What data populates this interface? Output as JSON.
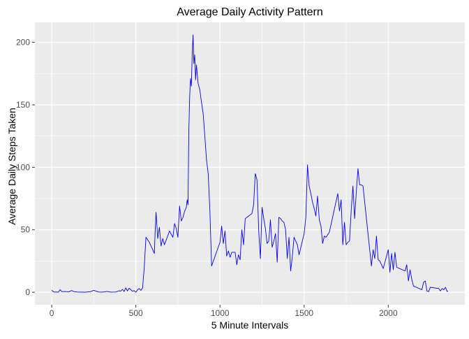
{
  "chart_data": {
    "type": "line",
    "title": "Average Daily Activity Pattern",
    "xlabel": "5 Minute Intervals",
    "ylabel": "Average Daily Steps Taken",
    "xlim": [
      -100,
      2455
    ],
    "ylim": [
      -10,
      216
    ],
    "x_ticks": [
      0,
      500,
      1000,
      1500,
      2000
    ],
    "x_tick_labels": [
      "0",
      "500",
      "1000",
      "1500",
      "2000"
    ],
    "y_ticks": [
      0,
      50,
      100,
      150,
      200
    ],
    "y_tick_labels": [
      "0",
      "50",
      "100",
      "150",
      "200"
    ],
    "grid": true,
    "panel_background": "#ebebeb",
    "grid_color": "#ffffff",
    "series": [
      {
        "color": "#0000ff",
        "x": [
          0,
          10,
          20,
          30,
          40,
          50,
          60,
          80,
          100,
          120,
          130,
          150,
          200,
          230,
          250,
          280,
          300,
          330,
          350,
          380,
          400,
          410,
          420,
          430,
          440,
          450,
          460,
          470,
          480,
          490,
          500,
          510,
          520,
          530,
          540,
          550,
          560,
          570,
          580,
          590,
          600,
          610,
          615,
          620,
          630,
          640,
          650,
          660,
          670,
          700,
          720,
          730,
          740,
          750,
          760,
          770,
          780,
          790,
          800,
          805,
          810,
          815,
          820,
          825,
          830,
          835,
          840,
          845,
          850,
          855,
          860,
          870,
          880,
          890,
          900,
          910,
          920,
          930,
          940,
          950,
          1000,
          1010,
          1020,
          1030,
          1040,
          1050,
          1060,
          1070,
          1080,
          1090,
          1100,
          1110,
          1120,
          1130,
          1140,
          1150,
          1160,
          1170,
          1180,
          1190,
          1200,
          1210,
          1220,
          1230,
          1240,
          1250,
          1260,
          1270,
          1280,
          1290,
          1300,
          1310,
          1320,
          1330,
          1340,
          1350,
          1360,
          1370,
          1380,
          1390,
          1400,
          1410,
          1420,
          1430,
          1440,
          1450,
          1460,
          1470,
          1500,
          1510,
          1520,
          1530,
          1540,
          1550,
          1560,
          1570,
          1580,
          1590,
          1600,
          1610,
          1620,
          1630,
          1640,
          1650,
          1700,
          1710,
          1720,
          1730,
          1740,
          1750,
          1760,
          1770,
          1780,
          1790,
          1800,
          1810,
          1820,
          1830,
          1840,
          1850,
          1900,
          1910,
          1920,
          1930,
          1940,
          1950,
          1960,
          1970,
          2000,
          2010,
          2020,
          2030,
          2040,
          2050,
          2100,
          2110,
          2120,
          2130,
          2140,
          2150,
          2200,
          2210,
          2220,
          2230,
          2240,
          2250,
          2300,
          2310,
          2320,
          2330,
          2340,
          2350,
          2355
        ],
        "y": [
          1.7,
          0.3,
          0.1,
          0.2,
          0.1,
          2.1,
          0.5,
          0.6,
          0.3,
          1.4,
          0.6,
          0.2,
          0.0,
          0.5,
          1.5,
          0.2,
          0.1,
          0.7,
          0.1,
          0.2,
          1.2,
          0.9,
          2.3,
          0.6,
          3.5,
          1.1,
          3.2,
          2.0,
          0.8,
          1.3,
          0.0,
          2.0,
          3.0,
          1.5,
          3.5,
          20.0,
          44.0,
          42.0,
          40.0,
          37.0,
          34.0,
          31.0,
          50.0,
          64.0,
          43.0,
          52.0,
          37.0,
          43.0,
          38.0,
          49.0,
          44.0,
          55.0,
          51.0,
          44.0,
          69.0,
          57.0,
          60.0,
          65.0,
          68.0,
          74.0,
          70.0,
          130.0,
          157.0,
          171.0,
          165.0,
          190.0,
          206.0,
          183.0,
          190.0,
          170.0,
          182.0,
          167.0,
          162.0,
          152.0,
          143.0,
          125.0,
          106.0,
          95.0,
          66.0,
          21.0,
          40.0,
          53.0,
          39.0,
          49.0,
          29.0,
          33.0,
          28.0,
          32.0,
          32.0,
          32.0,
          22.0,
          30.0,
          26.0,
          50.0,
          38.0,
          59.0,
          60.0,
          61.0,
          62.0,
          63.0,
          70.0,
          95.0,
          90.0,
          49.0,
          27.0,
          68.0,
          59.0,
          51.0,
          39.0,
          41.0,
          58.0,
          36.0,
          41.0,
          47.0,
          24.0,
          60.0,
          59.0,
          57.0,
          56.0,
          50.0,
          27.0,
          44.0,
          17.0,
          29.0,
          44.0,
          41.0,
          38.0,
          30.0,
          47.0,
          60.0,
          102.0,
          85.0,
          79.0,
          72.0,
          67.0,
          61.0,
          77.0,
          58.0,
          53.0,
          39.0,
          45.0,
          44.0,
          46.0,
          48.0,
          79.0,
          65.0,
          74.0,
          38.0,
          56.0,
          38.0,
          40.0,
          41.0,
          66.0,
          85.0,
          59.0,
          80.0,
          99.0,
          86.0,
          86.0,
          85.0,
          21.0,
          34.0,
          27.0,
          45.0,
          26.0,
          25.0,
          22.0,
          19.0,
          34.0,
          16.0,
          31.0,
          18.0,
          32.0,
          20.0,
          17.0,
          22.0,
          9.0,
          18.0,
          10.0,
          5.0,
          2.0,
          8.0,
          9.0,
          1.0,
          0.5,
          4.0,
          3.0,
          1.0,
          3.0,
          2.0,
          4.0,
          0.5,
          1.1
        ]
      }
    ]
  }
}
